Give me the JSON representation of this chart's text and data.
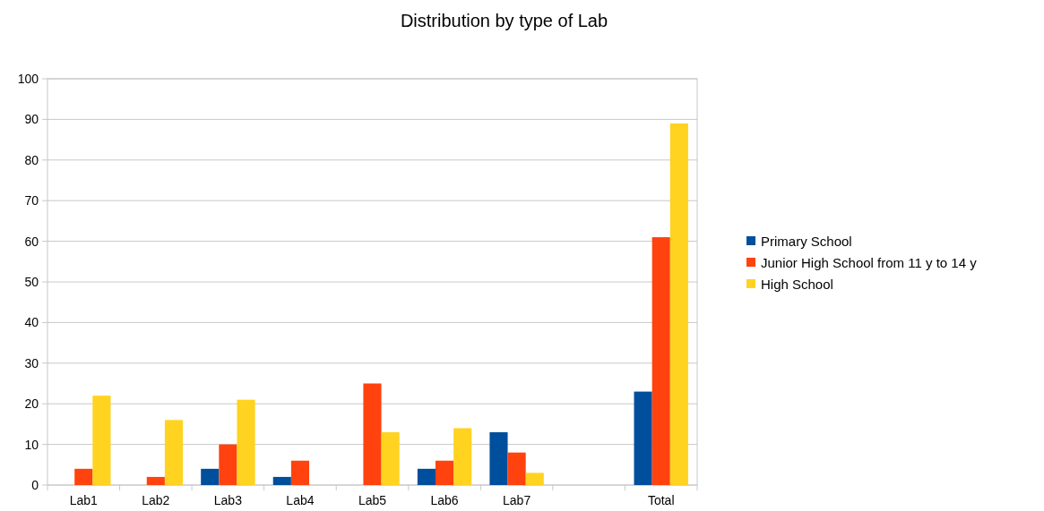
{
  "chart_data": {
    "type": "bar",
    "title": "Distribution by type of Lab",
    "categories": [
      "Lab1",
      "Lab2",
      "Lab3",
      "Lab4",
      "Lab5",
      "Lab6",
      "Lab7",
      null,
      "Total"
    ],
    "series": [
      {
        "name": "Primary School",
        "color": "#004f9c",
        "values": [
          0,
          0,
          4,
          2,
          0,
          4,
          13,
          null,
          23
        ]
      },
      {
        "name": "Junior High School from 11 y to 14 y",
        "color": "#ff420e",
        "values": [
          4,
          2,
          10,
          6,
          25,
          6,
          8,
          null,
          61
        ]
      },
      {
        "name": "High School",
        "color": "#ffd320",
        "values": [
          22,
          16,
          21,
          0,
          13,
          14,
          3,
          null,
          89
        ]
      }
    ],
    "ylim": [
      0,
      100
    ],
    "yticks": [
      0,
      10,
      20,
      30,
      40,
      50,
      60,
      70,
      80,
      90,
      100
    ],
    "grid": "y",
    "legend": "right"
  }
}
